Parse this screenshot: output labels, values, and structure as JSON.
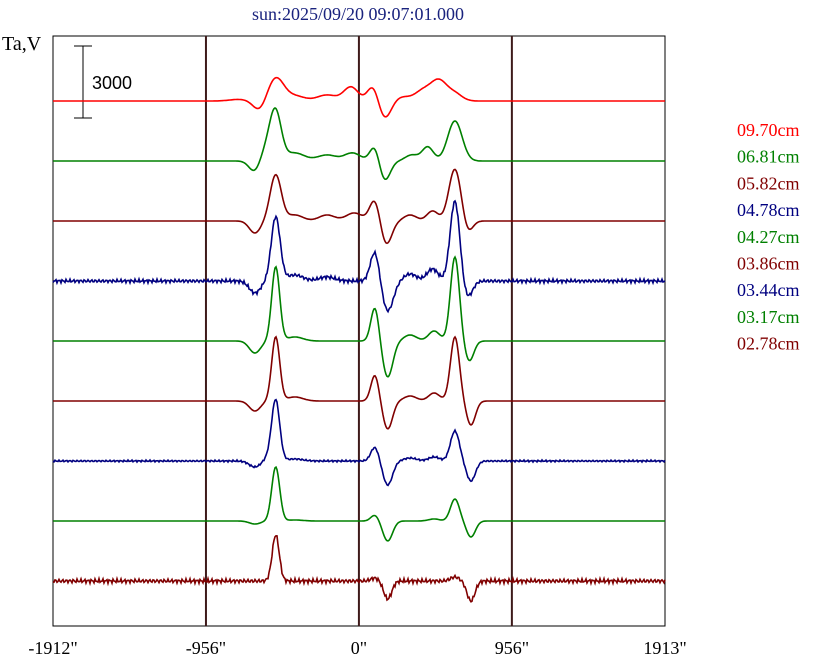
{
  "chart_data": {
    "type": "line",
    "title": "sun:2025/09/20 09:07:01.000",
    "ylabel": "Ta,V",
    "scale_bar_label": "3000",
    "x_ticks": [
      {
        "value": -1912,
        "label": "-1912\""
      },
      {
        "value": -956,
        "label": "-956\""
      },
      {
        "value": 0,
        "label": "0\""
      },
      {
        "value": 956,
        "label": "956\""
      },
      {
        "value": 1913,
        "label": "1913\""
      }
    ],
    "xlim": [
      -1912,
      1913
    ],
    "vertical_lines": [
      -956,
      0,
      956
    ],
    "series": [
      {
        "name": "09.70cm",
        "color": "#ff0000",
        "noise": 0,
        "features": [
          [
            -750,
            0.08,
            60
          ],
          [
            -620,
            -0.5,
            40
          ],
          [
            -520,
            1.15,
            50
          ],
          [
            -400,
            0.25,
            60
          ],
          [
            -200,
            0.3,
            60
          ],
          [
            -50,
            0.7,
            45
          ],
          [
            90,
            0.8,
            35
          ],
          [
            160,
            -0.9,
            40
          ],
          [
            270,
            0.2,
            50
          ],
          [
            400,
            0.5,
            50
          ],
          [
            500,
            1.0,
            50
          ],
          [
            600,
            0.35,
            45
          ]
        ]
      },
      {
        "name": "06.81cm",
        "color": "#008000",
        "noise": 0,
        "features": [
          [
            -650,
            -0.6,
            35
          ],
          [
            -560,
            0.8,
            50
          ],
          [
            -520,
            2.0,
            35
          ],
          [
            -400,
            0.4,
            60
          ],
          [
            -200,
            0.3,
            60
          ],
          [
            -40,
            0.4,
            50
          ],
          [
            100,
            0.8,
            30
          ],
          [
            160,
            -1.0,
            35
          ],
          [
            330,
            0.3,
            40
          ],
          [
            430,
            0.7,
            35
          ],
          [
            600,
            2.0,
            45
          ]
        ]
      },
      {
        "name": "05.82cm",
        "color": "#800000",
        "noise": 0,
        "features": [
          [
            -650,
            -0.6,
            35
          ],
          [
            -520,
            2.3,
            35
          ],
          [
            -400,
            0.3,
            50
          ],
          [
            -200,
            0.3,
            50
          ],
          [
            -30,
            0.4,
            50
          ],
          [
            100,
            1.1,
            32
          ],
          [
            170,
            -1.2,
            35
          ],
          [
            320,
            0.3,
            40
          ],
          [
            460,
            0.5,
            35
          ],
          [
            600,
            2.6,
            38
          ],
          [
            680,
            -0.6,
            30
          ]
        ]
      },
      {
        "name": "04.78cm",
        "color": "#000080",
        "noise": 0.1,
        "features": [
          [
            -650,
            -0.6,
            35
          ],
          [
            -520,
            3.2,
            28
          ],
          [
            -400,
            0.3,
            50
          ],
          [
            -200,
            0.2,
            50
          ],
          [
            100,
            1.5,
            28
          ],
          [
            180,
            -1.5,
            35
          ],
          [
            320,
            0.35,
            40
          ],
          [
            460,
            0.6,
            35
          ],
          [
            600,
            4.0,
            30
          ],
          [
            680,
            -0.8,
            30
          ]
        ]
      },
      {
        "name": "04.27cm",
        "color": "#008000",
        "noise": 0,
        "features": [
          [
            -650,
            -0.6,
            35
          ],
          [
            -520,
            3.7,
            25
          ],
          [
            -400,
            0.2,
            50
          ],
          [
            100,
            1.7,
            25
          ],
          [
            180,
            -1.8,
            32
          ],
          [
            320,
            0.3,
            40
          ],
          [
            470,
            0.5,
            35
          ],
          [
            600,
            4.2,
            28
          ],
          [
            690,
            -1.0,
            28
          ]
        ]
      },
      {
        "name": "03.86cm",
        "color": "#800000",
        "noise": 0,
        "features": [
          [
            -650,
            -0.5,
            35
          ],
          [
            -520,
            3.2,
            25
          ],
          [
            -400,
            0.2,
            50
          ],
          [
            100,
            1.3,
            25
          ],
          [
            180,
            -1.4,
            30
          ],
          [
            320,
            0.25,
            40
          ],
          [
            470,
            0.4,
            35
          ],
          [
            600,
            3.2,
            28
          ],
          [
            700,
            -1.2,
            28
          ]
        ]
      },
      {
        "name": "03.44cm",
        "color": "#000080",
        "noise": 0.05,
        "features": [
          [
            -650,
            -0.3,
            35
          ],
          [
            -560,
            0.2,
            30
          ],
          [
            -520,
            3.0,
            25
          ],
          [
            -400,
            0.1,
            50
          ],
          [
            100,
            0.7,
            25
          ],
          [
            180,
            -1.2,
            30
          ],
          [
            320,
            0.15,
            40
          ],
          [
            470,
            0.2,
            35
          ],
          [
            600,
            1.5,
            28
          ],
          [
            700,
            -1.0,
            28
          ]
        ]
      },
      {
        "name": "03.17cm",
        "color": "#008000",
        "noise": 0,
        "features": [
          [
            -650,
            -0.15,
            35
          ],
          [
            -520,
            2.7,
            25
          ],
          [
            -400,
            0.05,
            50
          ],
          [
            100,
            0.3,
            25
          ],
          [
            180,
            -1.0,
            30
          ],
          [
            470,
            0.1,
            35
          ],
          [
            600,
            1.1,
            28
          ],
          [
            700,
            -0.8,
            28
          ]
        ]
      },
      {
        "name": "02.78cm",
        "color": "#800000",
        "noise": 0.12,
        "features": [
          [
            -520,
            2.3,
            22
          ],
          [
            100,
            0.15,
            25
          ],
          [
            180,
            -0.9,
            25
          ],
          [
            600,
            0.2,
            28
          ],
          [
            700,
            -1.0,
            25
          ]
        ]
      }
    ]
  }
}
